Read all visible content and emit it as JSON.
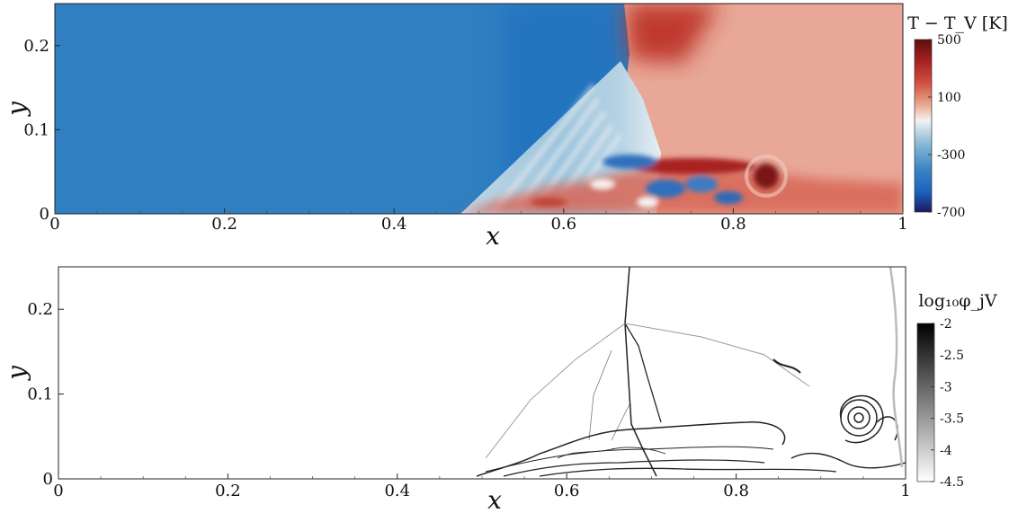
{
  "chart_data": [
    {
      "type": "heatmap",
      "title": "",
      "xlabel": "x",
      "ylabel": "y",
      "xlim": [
        0,
        1
      ],
      "ylim": [
        0,
        0.25
      ],
      "x_ticks": [
        0,
        0.2,
        0.4,
        0.6,
        0.8,
        1
      ],
      "x_tick_labels": [
        "0",
        "0.2",
        "0.4",
        "0.6",
        "0.8",
        "1"
      ],
      "y_ticks": [
        0,
        0.1,
        0.2
      ],
      "y_tick_labels": [
        "0",
        "0.1",
        "0.2"
      ],
      "colorbar": {
        "title": "T − T_V [K]",
        "ticks": [
          500,
          100,
          -300,
          -700
        ],
        "tick_labels": [
          "500",
          "100",
          "-300",
          "-700"
        ],
        "range": [
          -700,
          500
        ],
        "colors": [
          "#1a1a63",
          "#1d63c0",
          "#3a86c4",
          "#8cbad6",
          "#f2f2f2",
          "#ebaa90",
          "#d04f3f",
          "#a32020",
          "#5c0f0f"
        ]
      },
      "features": {
        "freestream_color": "#2f7fc1",
        "post_shock_color": "#e8a797",
        "hot_region_color": "#b8281f",
        "shock_triple_point": [
          0.67,
          0.18
        ],
        "upstream_front_x": 0.69,
        "boundary_layer_start_x": 0.48,
        "vortex_center": [
          0.84,
          0.04
        ]
      }
    },
    {
      "type": "heatmap",
      "title": "",
      "xlabel": "x",
      "ylabel": "y",
      "xlim": [
        0,
        1
      ],
      "ylim": [
        0,
        0.25
      ],
      "x_ticks": [
        0,
        0.2,
        0.4,
        0.6,
        0.8,
        1
      ],
      "x_tick_labels": [
        "0",
        "0.2",
        "0.4",
        "0.6",
        "0.8",
        "1"
      ],
      "y_ticks": [
        0,
        0.1,
        0.2
      ],
      "y_tick_labels": [
        "0",
        "0.1",
        "0.2"
      ],
      "colorbar": {
        "title": "log₁₀φ_jV",
        "ticks": [
          -2,
          -2.5,
          -3,
          -3.5,
          -4,
          -4.5
        ],
        "tick_labels": [
          "-2",
          "-2.5",
          "-3",
          "-3.5",
          "-4",
          "-4.5"
        ],
        "range": [
          -4.5,
          -2
        ],
        "colors": [
          "#ffffff",
          "#000000"
        ]
      },
      "features": {
        "background_color": "#ffffff",
        "line_color": "#222222",
        "shock_triple_point": [
          0.67,
          0.18
        ],
        "vortex_center": [
          0.95,
          0.08
        ]
      }
    }
  ]
}
